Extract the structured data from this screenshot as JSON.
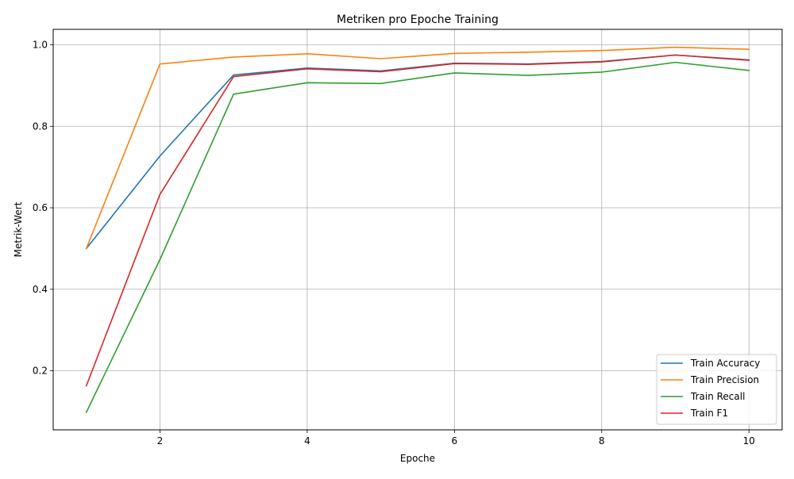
{
  "chart_data": {
    "type": "line",
    "title": "Metriken pro Epoche Training",
    "xlabel": "Epoche",
    "ylabel": "Metrik-Wert",
    "x": [
      1,
      2,
      3,
      4,
      5,
      6,
      7,
      8,
      9,
      10
    ],
    "xlim": [
      0.55,
      10.45
    ],
    "ylim": [
      0.055,
      1.038
    ],
    "xticks": [
      2,
      4,
      6,
      8,
      10
    ],
    "yticks": [
      0.2,
      0.4,
      0.6,
      0.8,
      1.0
    ],
    "xtick_labels": [
      "2",
      "4",
      "6",
      "8",
      "10"
    ],
    "ytick_labels": [
      "0.2",
      "0.4",
      "0.6",
      "0.8",
      "1.0"
    ],
    "grid": true,
    "legend_position": "lower-right",
    "series": [
      {
        "name": "Train Accuracy",
        "color": "#1f77b4",
        "values": [
          0.5,
          0.727,
          0.926,
          0.943,
          0.936,
          0.955,
          0.953,
          0.959,
          0.975,
          0.963
        ]
      },
      {
        "name": "Train Precision",
        "color": "#ff7f0e",
        "values": [
          0.5,
          0.953,
          0.97,
          0.978,
          0.966,
          0.979,
          0.982,
          0.986,
          0.994,
          0.989
        ]
      },
      {
        "name": "Train Recall",
        "color": "#2ca02c",
        "values": [
          0.098,
          0.473,
          0.879,
          0.907,
          0.905,
          0.931,
          0.925,
          0.933,
          0.957,
          0.937
        ]
      },
      {
        "name": "Train F1",
        "color": "#d62728",
        "values": [
          0.163,
          0.633,
          0.922,
          0.941,
          0.934,
          0.954,
          0.952,
          0.958,
          0.975,
          0.962
        ]
      }
    ]
  }
}
